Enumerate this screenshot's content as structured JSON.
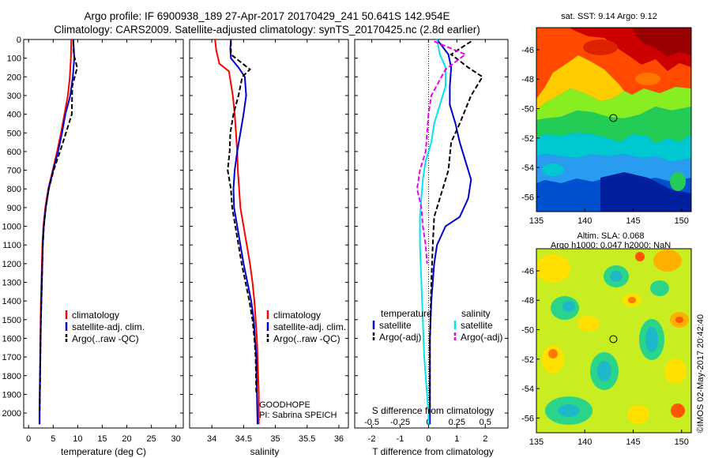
{
  "header": {
    "line1": "Argo profile: IF 6900938_189 27-Apr-2017 20170429_241 50.641S 142.954E",
    "line2": "Climatology: CARS2009. Satellite-adjusted climatology: synTS_20170425.nc (2.8d earlier)"
  },
  "depth_ticks": [
    0,
    100,
    200,
    300,
    400,
    500,
    600,
    700,
    800,
    900,
    1000,
    1100,
    1200,
    1300,
    1400,
    1500,
    1600,
    1700,
    1800,
    1900,
    2000
  ],
  "colors": {
    "climatology": "#ff0000",
    "satellite": "#0000cc",
    "argo": "#000000",
    "sat_salinity": "#00e5ee",
    "argo_salinity": "#ee00ee"
  },
  "chart_data": [
    {
      "type": "line",
      "id": "temperature",
      "xlabel": "temperature (deg C)",
      "ylabel": "",
      "xlim": [
        -1,
        31.5
      ],
      "ylim": [
        2080,
        0
      ],
      "xticks": [
        0,
        5,
        10,
        15,
        20,
        25,
        30
      ],
      "legend": [
        "climatology",
        "satellite-adj. clim.",
        "Argo(..raw -QC)"
      ],
      "series": [
        {
          "name": "climatology",
          "color": "#ff0000",
          "style": "solid",
          "x": [
            8.7,
            8.6,
            8.4,
            8.0,
            7.3,
            6.6,
            5.8,
            4.9,
            4.0,
            3.4,
            3.0,
            2.8,
            2.7,
            2.6,
            2.5,
            2.45,
            2.4,
            2.35,
            2.3,
            2.25,
            2.2,
            2.2
          ],
          "y": [
            0,
            100,
            200,
            300,
            400,
            500,
            600,
            700,
            800,
            900,
            1000,
            1100,
            1200,
            1300,
            1400,
            1500,
            1600,
            1700,
            1800,
            1900,
            2000,
            2060
          ]
        },
        {
          "name": "satellite-adj. clim.",
          "color": "#0000cc",
          "style": "solid",
          "x": [
            9.1,
            9.3,
            9.0,
            8.5,
            7.5,
            6.8,
            6.0,
            5.0,
            4.1,
            3.5,
            3.1,
            2.9,
            2.8,
            2.7,
            2.6,
            2.5,
            2.45,
            2.4,
            2.35,
            2.3,
            2.25,
            2.25
          ],
          "y": [
            0,
            100,
            200,
            300,
            400,
            500,
            600,
            700,
            800,
            900,
            1000,
            1100,
            1200,
            1300,
            1400,
            1500,
            1600,
            1700,
            1800,
            1900,
            2000,
            2060
          ]
        },
        {
          "name": "Argo(..raw -QC)",
          "color": "#000000",
          "style": "dashed",
          "x": [
            9.1,
            9.2,
            9.9,
            8.9,
            8.8,
            7.6,
            6.4,
            5.1,
            4.1,
            3.5,
            3.1,
            2.9,
            2.8,
            2.7,
            2.6,
            2.5,
            2.45,
            2.4,
            2.35,
            2.3,
            2.25
          ],
          "y": [
            10,
            80,
            150,
            250,
            400,
            500,
            600,
            700,
            800,
            900,
            1000,
            1100,
            1200,
            1300,
            1400,
            1500,
            1600,
            1700,
            1800,
            1900,
            2000
          ]
        }
      ]
    },
    {
      "type": "line",
      "id": "salinity",
      "xlabel": "salinity",
      "ylabel": "",
      "xlim": [
        33.65,
        36.15
      ],
      "ylim": [
        2080,
        0
      ],
      "xticks": [
        34,
        34.5,
        35,
        35.5,
        36
      ],
      "legend": [
        "climatology",
        "satellite-adj. clim.",
        "Argo(..raw -QC)"
      ],
      "annotation": [
        "GOODHOPE",
        "PI: Sabrina SPEICH"
      ],
      "series": [
        {
          "name": "climatology",
          "color": "#ff0000",
          "style": "solid",
          "x": [
            34.05,
            34.07,
            34.12,
            34.27,
            34.33,
            34.36,
            34.38,
            34.4,
            34.41,
            34.43,
            34.45,
            34.5,
            34.55,
            34.6,
            34.64,
            34.67,
            34.69,
            34.71,
            34.72,
            34.73,
            34.74,
            34.74
          ],
          "y": [
            0,
            60,
            130,
            170,
            300,
            400,
            500,
            600,
            700,
            800,
            900,
            1000,
            1100,
            1200,
            1300,
            1400,
            1500,
            1600,
            1700,
            1800,
            1900,
            2060
          ]
        },
        {
          "name": "satellite-adj. clim.",
          "color": "#0000cc",
          "style": "solid",
          "x": [
            34.3,
            34.29,
            34.3,
            34.42,
            34.52,
            34.54,
            34.5,
            34.45,
            34.4,
            34.36,
            34.34,
            34.35,
            34.4,
            34.45,
            34.5,
            34.56,
            34.62,
            34.66,
            34.68,
            34.7,
            34.71,
            34.72
          ],
          "y": [
            0,
            50,
            100,
            150,
            200,
            300,
            400,
            500,
            600,
            700,
            800,
            900,
            1000,
            1100,
            1200,
            1300,
            1400,
            1500,
            1600,
            1700,
            1900,
            2060
          ]
        },
        {
          "name": "Argo(..raw -QC)",
          "color": "#000000",
          "style": "dashed",
          "x": [
            34.3,
            34.3,
            34.45,
            34.6,
            34.48,
            34.42,
            34.34,
            34.29,
            34.28,
            34.25,
            34.3,
            34.32,
            34.37,
            34.42,
            34.47,
            34.53,
            34.59,
            34.64,
            34.67,
            34.69,
            34.7
          ],
          "y": [
            10,
            80,
            120,
            160,
            200,
            300,
            400,
            500,
            600,
            700,
            800,
            900,
            1000,
            1100,
            1200,
            1300,
            1400,
            1500,
            1600,
            1700,
            1900
          ]
        }
      ]
    },
    {
      "type": "line",
      "id": "difference",
      "xlabel": "T difference from climatology",
      "xlabel_top": "S difference from climatology",
      "ylabel": "",
      "xlim": [
        -2.6,
        2.8
      ],
      "ylim": [
        2080,
        0
      ],
      "xticks": [
        -2,
        -1,
        0,
        1,
        2
      ],
      "xticks_s": [
        -0.5,
        -0.25,
        0,
        0.25,
        0.5
      ],
      "legend_headers": [
        "temperature",
        "salinity"
      ],
      "legend": [
        "satellite",
        "Argo(-adj)",
        "satellite",
        "Argo(-adj)"
      ],
      "series": [
        {
          "name": "satellite",
          "color": "#0000cc",
          "style": "solid",
          "x": [
            0.3,
            0.7,
            0.8,
            0.75,
            0.75,
            0.95,
            1.1,
            1.3,
            1.5,
            1.4,
            1.1,
            0.6,
            0.3,
            0.2,
            0.1,
            0.05,
            0.05,
            0.05,
            0.05
          ],
          "y": [
            0,
            80,
            150,
            250,
            350,
            450,
            550,
            650,
            750,
            850,
            950,
            1000,
            1100,
            1200,
            1400,
            1600,
            1800,
            1900,
            2060
          ]
        },
        {
          "name": "Argo(-adj)",
          "color": "#000000",
          "style": "dashed",
          "x": [
            1.5,
            0.8,
            1.4,
            1.9,
            1.5,
            1.1,
            0.8,
            0.7,
            0.4,
            0.2,
            0.15,
            0.1,
            0.05,
            0.05,
            0.05
          ],
          "y": [
            10,
            80,
            150,
            200,
            300,
            450,
            550,
            700,
            850,
            950,
            1100,
            1300,
            1600,
            1800,
            2000
          ]
        },
        {
          "name": "satellite",
          "color": "#00e5ee",
          "style": "solid",
          "x": [
            0.3,
            0.4,
            0.6,
            0.6,
            0.4,
            0.2,
            0.1,
            -0.1,
            -0.2,
            -0.25,
            -0.3,
            -0.3,
            -0.25,
            -0.2,
            -0.15,
            -0.1,
            -0.05,
            0,
            0
          ],
          "y": [
            0,
            80,
            150,
            250,
            350,
            450,
            550,
            650,
            750,
            850,
            950,
            1100,
            1300,
            1500,
            1700,
            1800,
            1900,
            2000,
            2060
          ]
        },
        {
          "name": "Argo(-adj)",
          "color": "#ee00ee",
          "style": "dashed",
          "x": [
            0.2,
            1.3,
            0.6,
            0.1,
            0.0,
            -0.05,
            -0.1,
            -0.3,
            -0.4,
            -0.25,
            -0.2,
            -0.1,
            -0.05
          ],
          "y": [
            10,
            80,
            160,
            300,
            400,
            500,
            600,
            700,
            800,
            900,
            1000,
            1100,
            1200
          ]
        }
      ]
    },
    {
      "type": "heatmap",
      "id": "sst-map",
      "title": "sat. SST: 9.14 Argo: 9.12",
      "xlim": [
        135,
        151
      ],
      "ylim": [
        -57,
        -44.5
      ],
      "xticks": [
        135,
        140,
        145,
        150
      ],
      "yticks": [
        -46,
        -48,
        -50,
        -52,
        -54,
        -56
      ],
      "marker": {
        "lon": 142.954,
        "lat": -50.641
      }
    },
    {
      "type": "heatmap",
      "id": "sla-map",
      "title": "Altim. SLA: 0.068",
      "subtitle": "Argo h1000: 0.047 h2000: NaN",
      "xlim": [
        135,
        151
      ],
      "ylim": [
        -57,
        -44.5
      ],
      "xticks": [
        135,
        140,
        145,
        150
      ],
      "yticks": [
        -46,
        -48,
        -50,
        -52,
        -54,
        -56
      ],
      "marker": {
        "lon": 142.954,
        "lat": -50.641
      }
    }
  ],
  "credit": "©IMOS 02-May-2017 20:42:40"
}
